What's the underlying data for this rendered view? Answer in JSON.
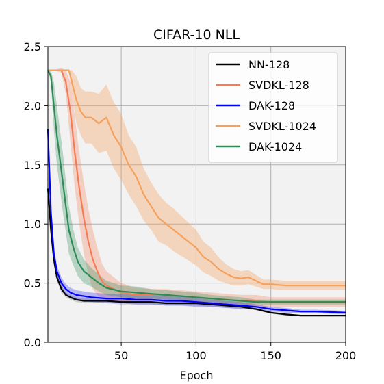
{
  "chart_data": {
    "type": "line",
    "title": "CIFAR-10 NLL",
    "xlabel": "Epoch",
    "ylabel": "",
    "xlim": [
      1,
      200
    ],
    "ylim": [
      0.0,
      2.5
    ],
    "xticks": [
      50,
      100,
      150,
      200
    ],
    "xtick_labels": [
      "50",
      "100",
      "150",
      "200"
    ],
    "yticks": [
      0.0,
      0.5,
      1.0,
      1.5,
      2.0,
      2.5
    ],
    "ytick_labels": [
      "0.0",
      "0.5",
      "1.0",
      "1.5",
      "2.0",
      "2.5"
    ],
    "grid": true,
    "legend_position": "top-right",
    "series": [
      {
        "name": "NN-128",
        "color": "#000000",
        "band_color": "#000000",
        "band_opacity": 0.15,
        "x": [
          1,
          3,
          5,
          7,
          10,
          13,
          16,
          20,
          25,
          30,
          40,
          50,
          60,
          70,
          80,
          90,
          100,
          110,
          120,
          130,
          140,
          150,
          160,
          170,
          180,
          190,
          200
        ],
        "y": [
          1.3,
          0.95,
          0.7,
          0.55,
          0.45,
          0.4,
          0.38,
          0.36,
          0.35,
          0.35,
          0.35,
          0.34,
          0.34,
          0.34,
          0.33,
          0.33,
          0.33,
          0.32,
          0.31,
          0.3,
          0.28,
          0.25,
          0.235,
          0.225,
          0.225,
          0.225,
          0.225
        ],
        "band": [
          0.05,
          0.05,
          0.04,
          0.03,
          0.03,
          0.02,
          0.02,
          0.02,
          0.02,
          0.02,
          0.02,
          0.02,
          0.02,
          0.02,
          0.02,
          0.02,
          0.02,
          0.02,
          0.02,
          0.015,
          0.01,
          0.01,
          0.01,
          0.005,
          0.005,
          0.005,
          0.005
        ]
      },
      {
        "name": "SVDKL-128",
        "color": "#f47c55",
        "band_color": "#f47c55",
        "band_opacity": 0.3,
        "x": [
          1,
          5,
          10,
          13,
          16,
          19,
          22,
          25,
          28,
          31,
          34,
          37,
          40,
          45,
          50,
          55,
          60,
          70,
          80,
          90,
          100,
          110,
          120,
          130,
          140,
          150,
          160,
          170,
          180,
          190,
          200
        ],
        "y": [
          2.3,
          2.3,
          2.3,
          2.2,
          1.95,
          1.6,
          1.3,
          1.05,
          0.85,
          0.7,
          0.6,
          0.52,
          0.48,
          0.45,
          0.42,
          0.41,
          0.4,
          0.4,
          0.4,
          0.39,
          0.38,
          0.37,
          0.36,
          0.35,
          0.35,
          0.34,
          0.34,
          0.34,
          0.34,
          0.34,
          0.34
        ],
        "band": [
          0.0,
          0.0,
          0.02,
          0.1,
          0.25,
          0.3,
          0.3,
          0.3,
          0.28,
          0.25,
          0.2,
          0.15,
          0.12,
          0.1,
          0.08,
          0.07,
          0.06,
          0.05,
          0.05,
          0.05,
          0.05,
          0.05,
          0.05,
          0.05,
          0.05,
          0.04,
          0.04,
          0.04,
          0.04,
          0.04,
          0.04
        ]
      },
      {
        "name": "DAK-128",
        "color": "#0000ff",
        "band_color": "#0000ff",
        "band_opacity": 0.25,
        "x": [
          1,
          3,
          5,
          7,
          10,
          13,
          16,
          20,
          25,
          30,
          40,
          50,
          60,
          70,
          80,
          90,
          100,
          110,
          120,
          130,
          140,
          150,
          160,
          170,
          180,
          190,
          200
        ],
        "y": [
          1.8,
          1.1,
          0.75,
          0.6,
          0.5,
          0.45,
          0.42,
          0.4,
          0.39,
          0.38,
          0.37,
          0.37,
          0.36,
          0.36,
          0.35,
          0.35,
          0.34,
          0.33,
          0.32,
          0.31,
          0.3,
          0.28,
          0.27,
          0.26,
          0.26,
          0.255,
          0.25
        ],
        "band": [
          0.08,
          0.08,
          0.06,
          0.05,
          0.05,
          0.04,
          0.04,
          0.04,
          0.04,
          0.04,
          0.04,
          0.04,
          0.04,
          0.04,
          0.04,
          0.04,
          0.04,
          0.03,
          0.03,
          0.03,
          0.02,
          0.02,
          0.02,
          0.015,
          0.015,
          0.015,
          0.015
        ]
      },
      {
        "name": "SVDKL-1024",
        "color": "#f5a05b",
        "band_color": "#f5a05b",
        "band_opacity": 0.35,
        "x": [
          1,
          5,
          10,
          15,
          17,
          20,
          23,
          26,
          30,
          35,
          40,
          45,
          50,
          55,
          60,
          65,
          70,
          75,
          80,
          85,
          90,
          95,
          100,
          105,
          110,
          115,
          120,
          125,
          130,
          135,
          140,
          145,
          150,
          160,
          170,
          180,
          190,
          200
        ],
        "y": [
          2.3,
          2.3,
          2.3,
          2.3,
          2.2,
          2.05,
          1.95,
          1.9,
          1.9,
          1.85,
          1.9,
          1.75,
          1.65,
          1.5,
          1.4,
          1.25,
          1.15,
          1.05,
          1.0,
          0.95,
          0.9,
          0.85,
          0.8,
          0.72,
          0.68,
          0.62,
          0.58,
          0.55,
          0.54,
          0.55,
          0.52,
          0.49,
          0.49,
          0.48,
          0.48,
          0.48,
          0.48,
          0.48
        ],
        "band": [
          0.0,
          0.0,
          0.0,
          0.0,
          0.1,
          0.2,
          0.2,
          0.22,
          0.22,
          0.25,
          0.28,
          0.28,
          0.28,
          0.25,
          0.25,
          0.22,
          0.2,
          0.2,
          0.18,
          0.18,
          0.17,
          0.16,
          0.15,
          0.13,
          0.12,
          0.1,
          0.08,
          0.07,
          0.06,
          0.06,
          0.05,
          0.04,
          0.04,
          0.04,
          0.04,
          0.04,
          0.04,
          0.04
        ]
      },
      {
        "name": "DAK-1024",
        "color": "#2e8b57",
        "band_color": "#2e8b57",
        "band_opacity": 0.3,
        "x": [
          1,
          3,
          5,
          7,
          9,
          11,
          13,
          15,
          18,
          21,
          25,
          30,
          35,
          40,
          50,
          60,
          70,
          80,
          90,
          100,
          110,
          120,
          130,
          140,
          150,
          160,
          170,
          180,
          190,
          200
        ],
        "y": [
          2.3,
          2.25,
          2.0,
          1.75,
          1.55,
          1.35,
          1.15,
          0.95,
          0.8,
          0.68,
          0.6,
          0.55,
          0.5,
          0.46,
          0.43,
          0.42,
          0.41,
          0.4,
          0.39,
          0.38,
          0.37,
          0.36,
          0.35,
          0.34,
          0.34,
          0.34,
          0.34,
          0.34,
          0.34,
          0.34
        ],
        "band": [
          0.0,
          0.05,
          0.2,
          0.25,
          0.25,
          0.25,
          0.22,
          0.2,
          0.15,
          0.12,
          0.1,
          0.08,
          0.07,
          0.06,
          0.05,
          0.05,
          0.04,
          0.04,
          0.04,
          0.04,
          0.03,
          0.03,
          0.03,
          0.02,
          0.02,
          0.02,
          0.02,
          0.02,
          0.02,
          0.02
        ]
      }
    ]
  }
}
